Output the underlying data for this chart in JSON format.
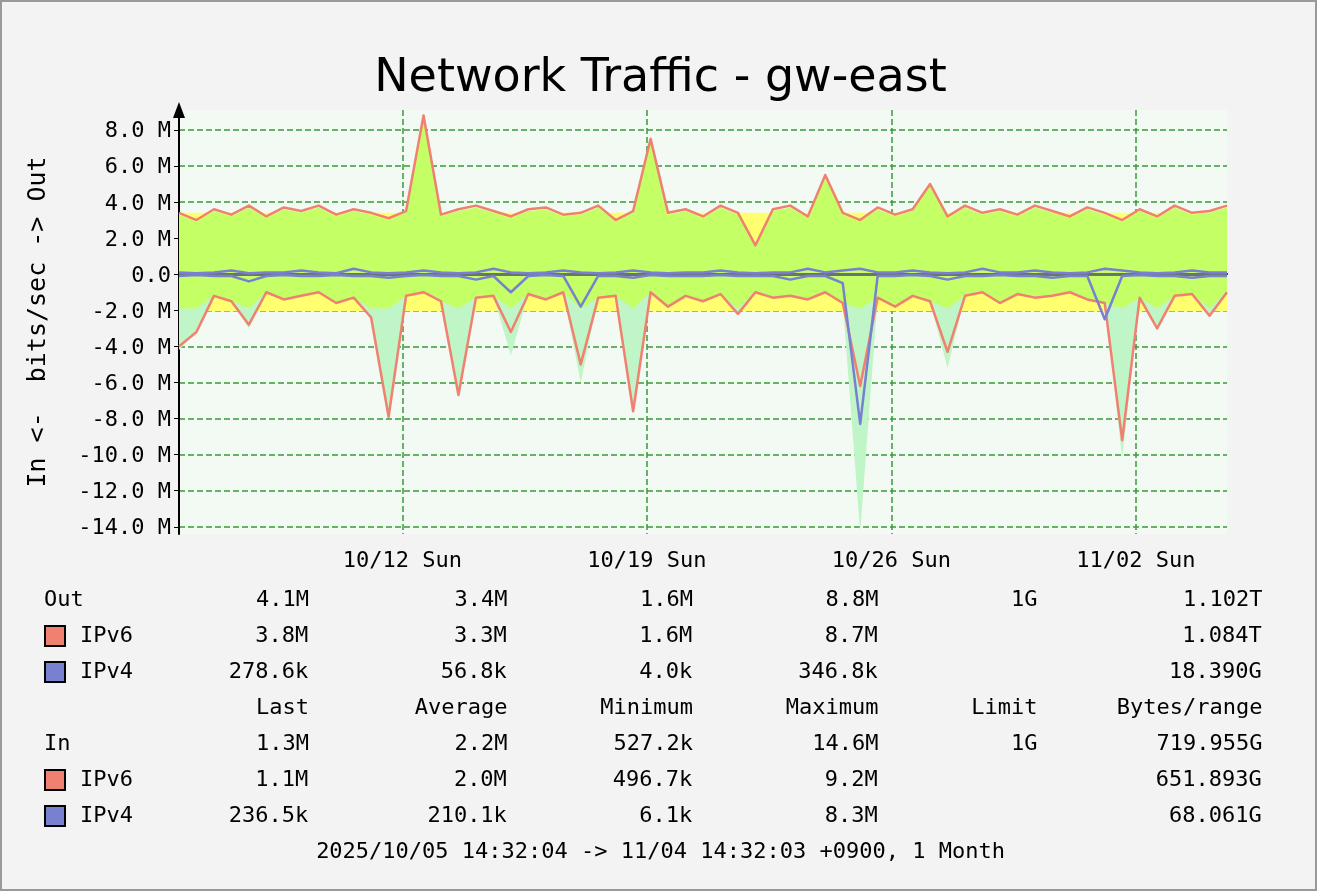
{
  "chart_data": {
    "type": "line",
    "title": "Network Traffic - gw-east",
    "ylabel": "In <-  bits/sec -> Out",
    "x": [
      "2025-10-05T14:32",
      "2025-10-06T02:32",
      "2025-10-06T14:32",
      "2025-10-07T02:32",
      "2025-10-07T14:32",
      "2025-10-08T02:32",
      "2025-10-08T14:32",
      "2025-10-09T02:32",
      "2025-10-09T14:32",
      "2025-10-10T02:32",
      "2025-10-10T14:32",
      "2025-10-11T02:32",
      "2025-10-11T14:32",
      "2025-10-12T02:32",
      "2025-10-12T14:32",
      "2025-10-13T02:32",
      "2025-10-13T14:32",
      "2025-10-14T02:32",
      "2025-10-14T14:32",
      "2025-10-15T02:32",
      "2025-10-15T14:32",
      "2025-10-16T02:32",
      "2025-10-16T14:32",
      "2025-10-17T02:32",
      "2025-10-17T14:32",
      "2025-10-18T02:32",
      "2025-10-18T14:32",
      "2025-10-19T02:32",
      "2025-10-19T14:32",
      "2025-10-20T02:32",
      "2025-10-20T14:32",
      "2025-10-21T02:32",
      "2025-10-21T14:32",
      "2025-10-22T02:32",
      "2025-10-22T14:32",
      "2025-10-23T02:32",
      "2025-10-23T14:32",
      "2025-10-24T02:32",
      "2025-10-24T14:32",
      "2025-10-25T02:32",
      "2025-10-25T14:32",
      "2025-10-26T02:32",
      "2025-10-26T14:32",
      "2025-10-27T02:32",
      "2025-10-27T14:32",
      "2025-10-28T02:32",
      "2025-10-28T14:32",
      "2025-10-29T02:32",
      "2025-10-29T14:32",
      "2025-10-30T02:32",
      "2025-10-30T14:32",
      "2025-10-31T02:32",
      "2025-10-31T14:32",
      "2025-11-01T02:32",
      "2025-11-01T14:32",
      "2025-11-02T02:32",
      "2025-11-02T14:32",
      "2025-11-03T02:32",
      "2025-11-03T14:32",
      "2025-11-04T02:32",
      "2025-11-04T14:32"
    ],
    "series": [
      {
        "type": "area",
        "color": "#c0f5c8",
        "values": [
          -4.2,
          -3.2,
          -1.2,
          -1.5,
          -3.0,
          -1.0,
          -1.4,
          -1.2,
          -1.0,
          -1.6,
          -1.3,
          -2.4,
          -7.9,
          -1.2,
          -1.0,
          -1.5,
          -6.8,
          -1.3,
          -1.2,
          -4.5,
          -1.1,
          -1.4,
          -1.0,
          -6.0,
          -1.3,
          -1.2,
          -7.6,
          -1.0,
          -1.8,
          -1.2,
          -1.5,
          -1.1,
          -2.2,
          -1.0,
          -1.3,
          -1.2,
          -1.4,
          -1.0,
          -1.6,
          -14.3,
          -1.3,
          -1.8,
          -1.2,
          -1.5,
          -5.2,
          -1.2,
          -1.0,
          -1.6,
          -1.1,
          -1.3,
          -1.2,
          -1.0,
          -1.4,
          -1.6,
          -10.2,
          -1.3,
          -3.0,
          -1.2,
          -1.1,
          -2.3,
          -1.0
        ]
      },
      {
        "type": "area",
        "color": "#c4ff66",
        "values": [
          3.3,
          2.9,
          3.5,
          3.2,
          3.7,
          3.1,
          3.6,
          3.4,
          3.7,
          3.2,
          3.5,
          3.3,
          3.0,
          3.4,
          8.7,
          3.2,
          3.5,
          3.7,
          3.4,
          3.1,
          3.5,
          3.6,
          3.2,
          3.3,
          3.7,
          2.9,
          3.4,
          7.4,
          3.3,
          3.5,
          3.1,
          3.7,
          3.3,
          1.6,
          3.5,
          3.7,
          3.1,
          5.4,
          3.3,
          2.9,
          3.6,
          3.2,
          3.5,
          4.9,
          3.1,
          3.7,
          3.3,
          3.5,
          3.2,
          3.7,
          3.4,
          3.1,
          3.6,
          3.3,
          2.9,
          3.5,
          3.1,
          3.7,
          3.3,
          3.4,
          3.7
        ]
      },
      {
        "type": "area",
        "color": "#c4ff66",
        "values": [
          -1.9,
          -1.9,
          -1.2,
          -1.5,
          -1.9,
          -1.0,
          -1.4,
          -1.2,
          -1.0,
          -1.6,
          -1.3,
          -1.9,
          -1.9,
          -1.2,
          -1.0,
          -1.5,
          -1.9,
          -1.3,
          -1.2,
          -1.9,
          -1.1,
          -1.4,
          -1.0,
          -1.9,
          -1.3,
          -1.2,
          -1.9,
          -1.0,
          -1.8,
          -1.2,
          -1.5,
          -1.1,
          -1.9,
          -1.0,
          -1.3,
          -1.2,
          -1.4,
          -1.0,
          -1.6,
          -1.9,
          -1.3,
          -1.8,
          -1.2,
          -1.5,
          -1.9,
          -1.2,
          -1.0,
          -1.6,
          -1.1,
          -1.3,
          -1.2,
          -1.0,
          -1.4,
          -1.6,
          -1.9,
          -1.3,
          -1.9,
          -1.2,
          -1.1,
          -1.9,
          -1.0
        ]
      },
      {
        "type": "line",
        "name": "IPv6",
        "color": "#f08070",
        "values": [
          3.4,
          3.0,
          3.6,
          3.3,
          3.8,
          3.2,
          3.7,
          3.5,
          3.8,
          3.3,
          3.6,
          3.4,
          3.1,
          3.5,
          8.8,
          3.3,
          3.6,
          3.8,
          3.5,
          3.2,
          3.6,
          3.7,
          3.3,
          3.4,
          3.8,
          3.0,
          3.5,
          7.5,
          3.4,
          3.6,
          3.2,
          3.8,
          3.4,
          1.6,
          3.6,
          3.8,
          3.2,
          5.5,
          3.4,
          3.0,
          3.7,
          3.3,
          3.6,
          5.0,
          3.2,
          3.8,
          3.4,
          3.6,
          3.3,
          3.8,
          3.5,
          3.2,
          3.7,
          3.4,
          3.0,
          3.6,
          3.2,
          3.8,
          3.4,
          3.5,
          3.8
        ]
      },
      {
        "type": "line",
        "name": "IPv4",
        "color": "#7880d0",
        "values": [
          0.1,
          0.05,
          0.1,
          0.2,
          0.05,
          0.1,
          0.1,
          0.2,
          0.1,
          0.05,
          0.3,
          0.1,
          0.05,
          0.1,
          0.2,
          0.1,
          0.05,
          0.1,
          0.3,
          0.1,
          0.05,
          0.1,
          0.2,
          0.1,
          0.05,
          0.1,
          0.2,
          0.1,
          0.05,
          0.1,
          0.1,
          0.2,
          0.1,
          0.05,
          0.1,
          0.1,
          0.3,
          0.1,
          0.2,
          0.3,
          0.1,
          0.1,
          0.2,
          0.1,
          0.05,
          0.1,
          0.3,
          0.1,
          0.1,
          0.2,
          0.1,
          0.05,
          0.1,
          0.3,
          0.2,
          0.1,
          0.05,
          0.1,
          0.2,
          0.1,
          0.1
        ]
      },
      {
        "type": "line",
        "name": "IPv6",
        "color": "#f08070",
        "values": [
          -4.0,
          -3.2,
          -1.2,
          -1.5,
          -2.8,
          -1.0,
          -1.4,
          -1.2,
          -1.0,
          -1.6,
          -1.3,
          -2.4,
          -7.9,
          -1.2,
          -1.0,
          -1.5,
          -6.7,
          -1.3,
          -1.2,
          -3.2,
          -1.1,
          -1.4,
          -1.0,
          -5.0,
          -1.3,
          -1.2,
          -7.6,
          -1.0,
          -1.8,
          -1.2,
          -1.5,
          -1.1,
          -2.2,
          -1.0,
          -1.3,
          -1.2,
          -1.4,
          -1.0,
          -1.6,
          -6.2,
          -1.3,
          -1.8,
          -1.2,
          -1.5,
          -4.3,
          -1.2,
          -1.0,
          -1.6,
          -1.1,
          -1.3,
          -1.2,
          -1.0,
          -1.4,
          -1.6,
          -9.2,
          -1.3,
          -3.0,
          -1.2,
          -1.1,
          -2.3,
          -1.0
        ]
      },
      {
        "type": "line",
        "name": "IPv4",
        "color": "#7880d0",
        "values": [
          -0.1,
          -0.05,
          -0.1,
          -0.1,
          -0.4,
          -0.1,
          -0.05,
          -0.1,
          -0.1,
          -0.05,
          -0.1,
          -0.1,
          -0.2,
          -0.1,
          -0.05,
          -0.1,
          -0.1,
          -0.3,
          -0.1,
          -1.0,
          -0.1,
          -0.05,
          -0.1,
          -1.8,
          -0.1,
          -0.1,
          -0.2,
          -0.05,
          -0.1,
          -0.1,
          -0.1,
          -0.05,
          -0.1,
          -0.1,
          -0.1,
          -0.3,
          -0.1,
          -0.1,
          -0.5,
          -8.3,
          -0.1,
          -0.1,
          -0.05,
          -0.1,
          -0.3,
          -0.1,
          -0.1,
          -0.05,
          -0.1,
          -0.1,
          -0.2,
          -0.1,
          -0.1,
          -2.5,
          -0.1,
          -0.05,
          -0.1,
          -0.1,
          -0.2,
          -0.1,
          -0.1
        ]
      }
    ],
    "bands": [
      {
        "axis": "y",
        "from": -2.05,
        "to": 3.4,
        "color": "#ffff70"
      }
    ],
    "ref_lines": [
      {
        "axis": "y",
        "value": 0,
        "color": "#707070"
      }
    ],
    "xlim": [
      "2025-10-05T14:32",
      "2025-11-04T14:32"
    ],
    "xticks": [
      {
        "value": "2025-10-12",
        "label": "10/12 Sun"
      },
      {
        "value": "2025-10-19",
        "label": "10/19 Sun"
      },
      {
        "value": "2025-10-26",
        "label": "10/26 Sun"
      },
      {
        "value": "2025-11-02",
        "label": "11/02 Sun"
      }
    ],
    "ylim": [
      -14.4,
      9.1
    ],
    "yticks": [
      {
        "value": 8,
        "label": "8.0 M"
      },
      {
        "value": 6,
        "label": "6.0 M"
      },
      {
        "value": 4,
        "label": "4.0 M"
      },
      {
        "value": 2,
        "label": "2.0 M"
      },
      {
        "value": 0,
        "label": "0.0"
      },
      {
        "value": -2,
        "label": "-2.0 M"
      },
      {
        "value": -4,
        "label": "-4.0 M"
      },
      {
        "value": -6,
        "label": "-6.0 M"
      },
      {
        "value": -8,
        "label": "-8.0 M"
      },
      {
        "value": -10,
        "label": "-10.0 M"
      },
      {
        "value": -12,
        "label": "-12.0 M"
      },
      {
        "value": -14,
        "label": "-14.0 M"
      }
    ],
    "grid": true,
    "legend": "bottom left",
    "marker": "none",
    "line_style": "solid",
    "annotations": [
      "Out             4.1M           3.4M          1.6M          8.8M          1G           1.102T",
      "         3.8M           3.3M          1.6M          8.7M                       1.084T",
      "       278.6k          56.8k          4.0k        346.8k                      18.390G",
      "                Last        Average       Minimum       Maximum       Limit      Bytes/range",
      "In              1.3M           2.2M        527.2k         14.6M          1G         719.955G",
      "         1.1M           2.0M        496.7k          9.2M                     651.893G",
      "       236.5k         210.1k          6.1k          8.3M                      68.061G",
      "2025/10/05 14:32:04 -> 11/04 14:32:03 +0900, 1 Month"
    ]
  }
}
